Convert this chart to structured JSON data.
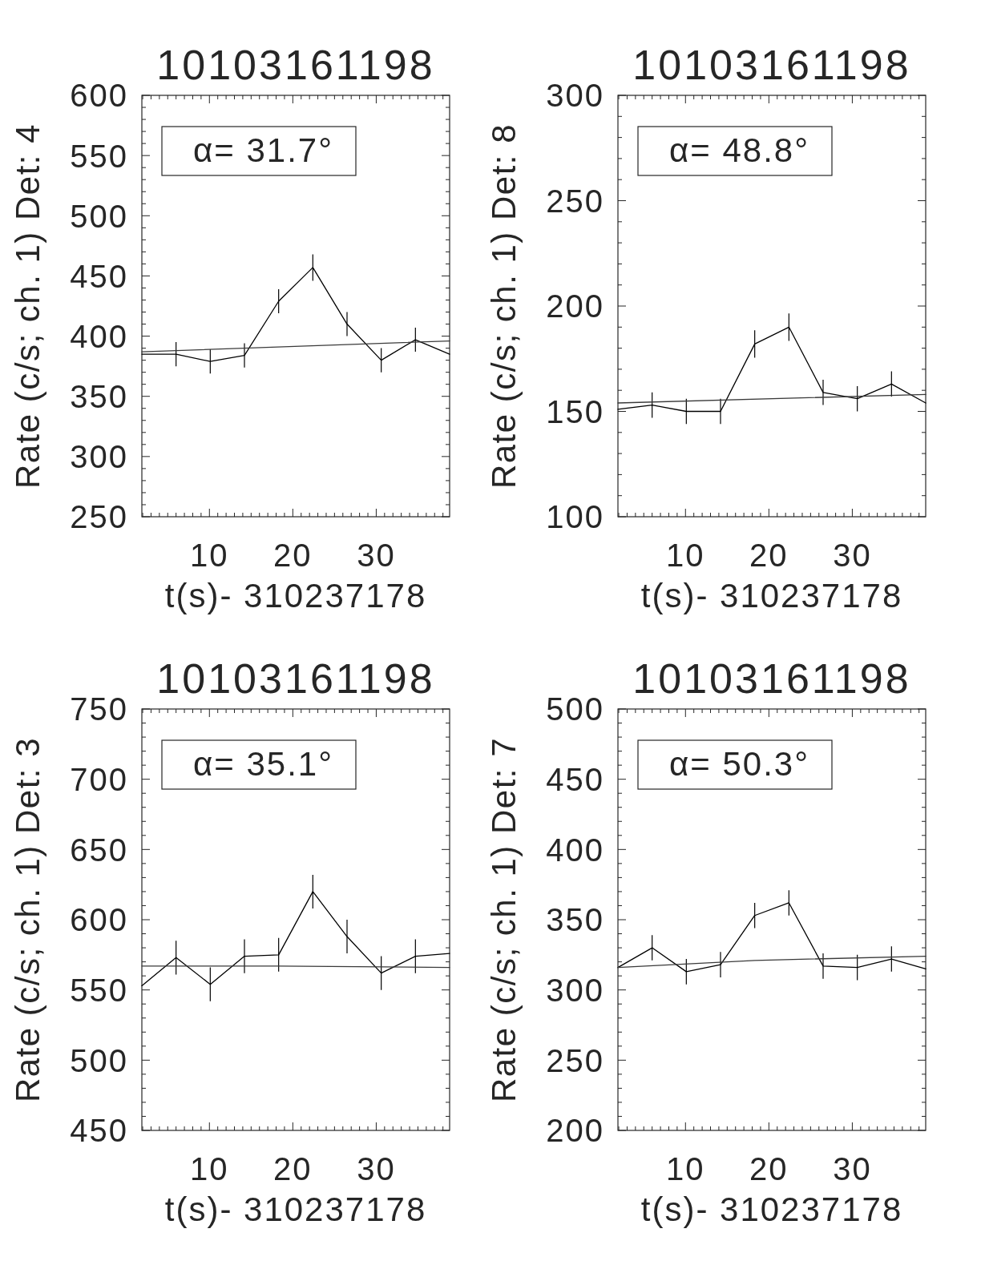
{
  "chart_data": [
    {
      "type": "line",
      "title": "10103161198",
      "xlabel": "t(s)- 310237178",
      "ylabel": "Rate (c/s; ch. 1) Det: 4",
      "xlim": [
        1.9,
        38.8
      ],
      "xticks": [
        {
          "value": 2,
          "label": null
        },
        {
          "value": 3,
          "label": null
        },
        {
          "value": 4,
          "label": null
        },
        {
          "value": 5,
          "label": null
        },
        {
          "value": 6,
          "label": null
        },
        {
          "value": 7,
          "label": null
        },
        {
          "value": 8,
          "label": null
        },
        {
          "value": 9,
          "label": null
        },
        10,
        {
          "value": 11,
          "label": null
        },
        {
          "value": 12,
          "label": null
        },
        {
          "value": 13,
          "label": null
        },
        {
          "value": 14,
          "label": null
        },
        {
          "value": 15,
          "label": null
        },
        {
          "value": 16,
          "label": null
        },
        {
          "value": 17,
          "label": null
        },
        {
          "value": 18,
          "label": null
        },
        {
          "value": 19,
          "label": null
        },
        20,
        {
          "value": 21,
          "label": null
        },
        {
          "value": 22,
          "label": null
        },
        {
          "value": 23,
          "label": null
        },
        {
          "value": 24,
          "label": null
        },
        {
          "value": 25,
          "label": null
        },
        {
          "value": 26,
          "label": null
        },
        {
          "value": 27,
          "label": null
        },
        {
          "value": 28,
          "label": null
        },
        {
          "value": 29,
          "label": null
        },
        30,
        {
          "value": 31,
          "label": null
        },
        {
          "value": 32,
          "label": null
        },
        {
          "value": 33,
          "label": null
        },
        {
          "value": 34,
          "label": null
        },
        {
          "value": 35,
          "label": null
        },
        {
          "value": 36,
          "label": null
        },
        {
          "value": 37,
          "label": null
        },
        {
          "value": 38,
          "label": null
        }
      ],
      "ylim": [
        250,
        600
      ],
      "yticks": [
        250,
        {
          "value": 260,
          "label": null
        },
        {
          "value": 270,
          "label": null
        },
        {
          "value": 280,
          "label": null
        },
        {
          "value": 290,
          "label": null
        },
        300,
        {
          "value": 310,
          "label": null
        },
        {
          "value": 320,
          "label": null
        },
        {
          "value": 330,
          "label": null
        },
        {
          "value": 340,
          "label": null
        },
        350,
        {
          "value": 360,
          "label": null
        },
        {
          "value": 370,
          "label": null
        },
        {
          "value": 380,
          "label": null
        },
        {
          "value": 390,
          "label": null
        },
        400,
        {
          "value": 410,
          "label": null
        },
        {
          "value": 420,
          "label": null
        },
        {
          "value": 430,
          "label": null
        },
        {
          "value": 440,
          "label": null
        },
        450,
        {
          "value": 460,
          "label": null
        },
        {
          "value": 470,
          "label": null
        },
        {
          "value": 480,
          "label": null
        },
        {
          "value": 490,
          "label": null
        },
        500,
        {
          "value": 510,
          "label": null
        },
        {
          "value": 520,
          "label": null
        },
        {
          "value": 530,
          "label": null
        },
        {
          "value": 540,
          "label": null
        },
        550,
        {
          "value": 560,
          "label": null
        },
        {
          "value": 570,
          "label": null
        },
        {
          "value": 580,
          "label": null
        },
        {
          "value": 590,
          "label": null
        },
        600
      ],
      "annotations": [
        "α= 31.7°"
      ],
      "series": [
        {
          "color": "#000000",
          "x": [
            1.9,
            6.0,
            10.1,
            14.2,
            18.3,
            22.4,
            26.5,
            30.6,
            34.7,
            38.8
          ],
          "values": [
            385,
            385,
            379,
            384,
            429,
            457,
            410,
            380,
            397,
            385
          ],
          "errors": [
            null,
            10,
            10,
            10,
            10,
            11,
            10,
            10,
            10,
            null
          ]
        },
        {
          "color": "#3a3a3a",
          "x": [
            1.9,
            38.8
          ],
          "values": [
            387,
            396
          ]
        }
      ]
    },
    {
      "type": "line",
      "title": "10103161198",
      "xlabel": "t(s)- 310237178",
      "ylabel": "Rate (c/s; ch. 1) Det: 8",
      "xlim": [
        1.9,
        38.8
      ],
      "xticks": [
        {
          "value": 2,
          "label": null
        },
        {
          "value": 3,
          "label": null
        },
        {
          "value": 4,
          "label": null
        },
        {
          "value": 5,
          "label": null
        },
        {
          "value": 6,
          "label": null
        },
        {
          "value": 7,
          "label": null
        },
        {
          "value": 8,
          "label": null
        },
        {
          "value": 9,
          "label": null
        },
        10,
        {
          "value": 11,
          "label": null
        },
        {
          "value": 12,
          "label": null
        },
        {
          "value": 13,
          "label": null
        },
        {
          "value": 14,
          "label": null
        },
        {
          "value": 15,
          "label": null
        },
        {
          "value": 16,
          "label": null
        },
        {
          "value": 17,
          "label": null
        },
        {
          "value": 18,
          "label": null
        },
        {
          "value": 19,
          "label": null
        },
        20,
        {
          "value": 21,
          "label": null
        },
        {
          "value": 22,
          "label": null
        },
        {
          "value": 23,
          "label": null
        },
        {
          "value": 24,
          "label": null
        },
        {
          "value": 25,
          "label": null
        },
        {
          "value": 26,
          "label": null
        },
        {
          "value": 27,
          "label": null
        },
        {
          "value": 28,
          "label": null
        },
        {
          "value": 29,
          "label": null
        },
        30,
        {
          "value": 31,
          "label": null
        },
        {
          "value": 32,
          "label": null
        },
        {
          "value": 33,
          "label": null
        },
        {
          "value": 34,
          "label": null
        },
        {
          "value": 35,
          "label": null
        },
        {
          "value": 36,
          "label": null
        },
        {
          "value": 37,
          "label": null
        },
        {
          "value": 38,
          "label": null
        }
      ],
      "ylim": [
        100,
        300
      ],
      "yticks": [
        100,
        {
          "value": 110,
          "label": null
        },
        {
          "value": 120,
          "label": null
        },
        {
          "value": 130,
          "label": null
        },
        {
          "value": 140,
          "label": null
        },
        150,
        {
          "value": 160,
          "label": null
        },
        {
          "value": 170,
          "label": null
        },
        {
          "value": 180,
          "label": null
        },
        {
          "value": 190,
          "label": null
        },
        200,
        {
          "value": 210,
          "label": null
        },
        {
          "value": 220,
          "label": null
        },
        {
          "value": 230,
          "label": null
        },
        {
          "value": 240,
          "label": null
        },
        250,
        {
          "value": 260,
          "label": null
        },
        {
          "value": 270,
          "label": null
        },
        {
          "value": 280,
          "label": null
        },
        {
          "value": 290,
          "label": null
        },
        300
      ],
      "annotations": [
        "α= 48.8°"
      ],
      "series": [
        {
          "color": "#000000",
          "x": [
            1.9,
            6.0,
            10.1,
            14.2,
            18.3,
            22.4,
            26.5,
            30.6,
            34.7,
            38.8
          ],
          "values": [
            151,
            153,
            150,
            150,
            182,
            190,
            159,
            156,
            163,
            154
          ],
          "errors": [
            null,
            6,
            6,
            6,
            6.5,
            6.5,
            6,
            6,
            6,
            null
          ]
        },
        {
          "color": "#3a3a3a",
          "x": [
            1.9,
            38.8
          ],
          "values": [
            154,
            158
          ]
        }
      ]
    },
    {
      "type": "line",
      "title": "10103161198",
      "xlabel": "t(s)- 310237178",
      "ylabel": "Rate (c/s; ch. 1) Det: 3",
      "xlim": [
        1.9,
        38.8
      ],
      "xticks": [
        {
          "value": 2,
          "label": null
        },
        {
          "value": 3,
          "label": null
        },
        {
          "value": 4,
          "label": null
        },
        {
          "value": 5,
          "label": null
        },
        {
          "value": 6,
          "label": null
        },
        {
          "value": 7,
          "label": null
        },
        {
          "value": 8,
          "label": null
        },
        {
          "value": 9,
          "label": null
        },
        10,
        {
          "value": 11,
          "label": null
        },
        {
          "value": 12,
          "label": null
        },
        {
          "value": 13,
          "label": null
        },
        {
          "value": 14,
          "label": null
        },
        {
          "value": 15,
          "label": null
        },
        {
          "value": 16,
          "label": null
        },
        {
          "value": 17,
          "label": null
        },
        {
          "value": 18,
          "label": null
        },
        {
          "value": 19,
          "label": null
        },
        20,
        {
          "value": 21,
          "label": null
        },
        {
          "value": 22,
          "label": null
        },
        {
          "value": 23,
          "label": null
        },
        {
          "value": 24,
          "label": null
        },
        {
          "value": 25,
          "label": null
        },
        {
          "value": 26,
          "label": null
        },
        {
          "value": 27,
          "label": null
        },
        {
          "value": 28,
          "label": null
        },
        {
          "value": 29,
          "label": null
        },
        30,
        {
          "value": 31,
          "label": null
        },
        {
          "value": 32,
          "label": null
        },
        {
          "value": 33,
          "label": null
        },
        {
          "value": 34,
          "label": null
        },
        {
          "value": 35,
          "label": null
        },
        {
          "value": 36,
          "label": null
        },
        {
          "value": 37,
          "label": null
        },
        {
          "value": 38,
          "label": null
        }
      ],
      "ylim": [
        450,
        750
      ],
      "yticks": [
        450,
        {
          "value": 460,
          "label": null
        },
        {
          "value": 470,
          "label": null
        },
        {
          "value": 480,
          "label": null
        },
        {
          "value": 490,
          "label": null
        },
        500,
        {
          "value": 510,
          "label": null
        },
        {
          "value": 520,
          "label": null
        },
        {
          "value": 530,
          "label": null
        },
        {
          "value": 540,
          "label": null
        },
        550,
        {
          "value": 560,
          "label": null
        },
        {
          "value": 570,
          "label": null
        },
        {
          "value": 580,
          "label": null
        },
        {
          "value": 590,
          "label": null
        },
        600,
        {
          "value": 610,
          "label": null
        },
        {
          "value": 620,
          "label": null
        },
        {
          "value": 630,
          "label": null
        },
        {
          "value": 640,
          "label": null
        },
        650,
        {
          "value": 660,
          "label": null
        },
        {
          "value": 670,
          "label": null
        },
        {
          "value": 680,
          "label": null
        },
        {
          "value": 690,
          "label": null
        },
        700,
        {
          "value": 710,
          "label": null
        },
        {
          "value": 720,
          "label": null
        },
        {
          "value": 730,
          "label": null
        },
        {
          "value": 740,
          "label": null
        },
        750
      ],
      "annotations": [
        "α= 35.1°"
      ],
      "series": [
        {
          "color": "#000000",
          "x": [
            1.9,
            6.0,
            10.1,
            14.2,
            18.3,
            22.4,
            26.5,
            30.6,
            34.7,
            38.8
          ],
          "values": [
            553,
            573,
            554,
            574,
            575,
            620,
            588,
            562,
            574,
            576
          ],
          "errors": [
            null,
            12,
            12,
            12,
            12,
            12,
            12,
            12,
            12,
            null
          ]
        },
        {
          "color": "#3a3a3a",
          "x": [
            1.9,
            18.3,
            38.8
          ],
          "values": [
            567,
            567,
            566
          ]
        }
      ]
    },
    {
      "type": "line",
      "title": "10103161198",
      "xlabel": "t(s)- 310237178",
      "ylabel": "Rate (c/s; ch. 1) Det: 7",
      "xlim": [
        1.9,
        38.8
      ],
      "xticks": [
        {
          "value": 2,
          "label": null
        },
        {
          "value": 3,
          "label": null
        },
        {
          "value": 4,
          "label": null
        },
        {
          "value": 5,
          "label": null
        },
        {
          "value": 6,
          "label": null
        },
        {
          "value": 7,
          "label": null
        },
        {
          "value": 8,
          "label": null
        },
        {
          "value": 9,
          "label": null
        },
        10,
        {
          "value": 11,
          "label": null
        },
        {
          "value": 12,
          "label": null
        },
        {
          "value": 13,
          "label": null
        },
        {
          "value": 14,
          "label": null
        },
        {
          "value": 15,
          "label": null
        },
        {
          "value": 16,
          "label": null
        },
        {
          "value": 17,
          "label": null
        },
        {
          "value": 18,
          "label": null
        },
        {
          "value": 19,
          "label": null
        },
        20,
        {
          "value": 21,
          "label": null
        },
        {
          "value": 22,
          "label": null
        },
        {
          "value": 23,
          "label": null
        },
        {
          "value": 24,
          "label": null
        },
        {
          "value": 25,
          "label": null
        },
        {
          "value": 26,
          "label": null
        },
        {
          "value": 27,
          "label": null
        },
        {
          "value": 28,
          "label": null
        },
        {
          "value": 29,
          "label": null
        },
        30,
        {
          "value": 31,
          "label": null
        },
        {
          "value": 32,
          "label": null
        },
        {
          "value": 33,
          "label": null
        },
        {
          "value": 34,
          "label": null
        },
        {
          "value": 35,
          "label": null
        },
        {
          "value": 36,
          "label": null
        },
        {
          "value": 37,
          "label": null
        },
        {
          "value": 38,
          "label": null
        }
      ],
      "ylim": [
        200,
        500
      ],
      "yticks": [
        200,
        {
          "value": 210,
          "label": null
        },
        {
          "value": 220,
          "label": null
        },
        {
          "value": 230,
          "label": null
        },
        {
          "value": 240,
          "label": null
        },
        250,
        {
          "value": 260,
          "label": null
        },
        {
          "value": 270,
          "label": null
        },
        {
          "value": 280,
          "label": null
        },
        {
          "value": 290,
          "label": null
        },
        300,
        {
          "value": 310,
          "label": null
        },
        {
          "value": 320,
          "label": null
        },
        {
          "value": 330,
          "label": null
        },
        {
          "value": 340,
          "label": null
        },
        350,
        {
          "value": 360,
          "label": null
        },
        {
          "value": 370,
          "label": null
        },
        {
          "value": 380,
          "label": null
        },
        {
          "value": 390,
          "label": null
        },
        400,
        {
          "value": 410,
          "label": null
        },
        {
          "value": 420,
          "label": null
        },
        {
          "value": 430,
          "label": null
        },
        {
          "value": 440,
          "label": null
        },
        450,
        {
          "value": 460,
          "label": null
        },
        {
          "value": 470,
          "label": null
        },
        {
          "value": 480,
          "label": null
        },
        {
          "value": 490,
          "label": null
        },
        500
      ],
      "annotations": [
        "α= 50.3°"
      ],
      "series": [
        {
          "color": "#000000",
          "x": [
            1.9,
            6.0,
            10.1,
            14.2,
            18.3,
            22.4,
            26.5,
            30.6,
            34.7,
            38.8
          ],
          "values": [
            316,
            330,
            313,
            318,
            353,
            362,
            317,
            316,
            322,
            315
          ],
          "errors": [
            null,
            9,
            9,
            9,
            9,
            9,
            9,
            9,
            9,
            null
          ]
        },
        {
          "color": "#3a3a3a",
          "x": [
            1.9,
            18.3,
            38.8
          ],
          "values": [
            316,
            321,
            324
          ]
        }
      ]
    }
  ]
}
